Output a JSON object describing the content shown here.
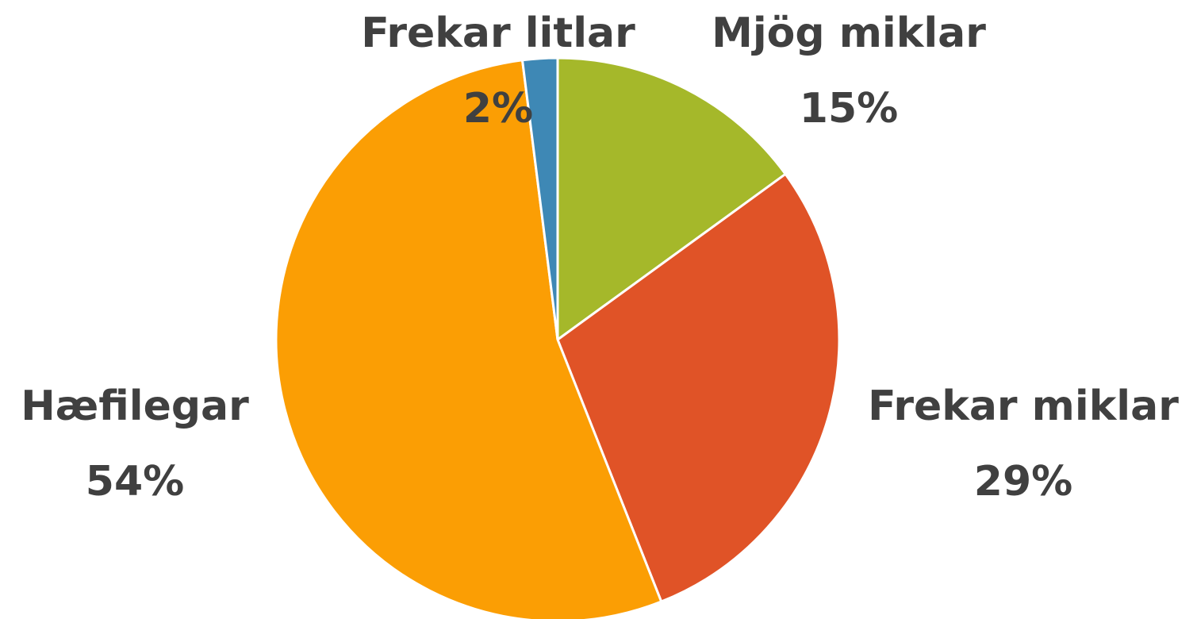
{
  "chart_data": {
    "type": "pie",
    "categories": [
      "Mjög miklar",
      "Frekar miklar",
      "Hæfilegar",
      "Frekar litlar"
    ],
    "values": [
      15,
      29,
      54,
      2
    ],
    "value_labels": [
      "15%",
      "29%",
      "54%",
      "2%"
    ],
    "colors": [
      "#a5b82a",
      "#e05327",
      "#fb9e04",
      "#3e88b5"
    ]
  }
}
